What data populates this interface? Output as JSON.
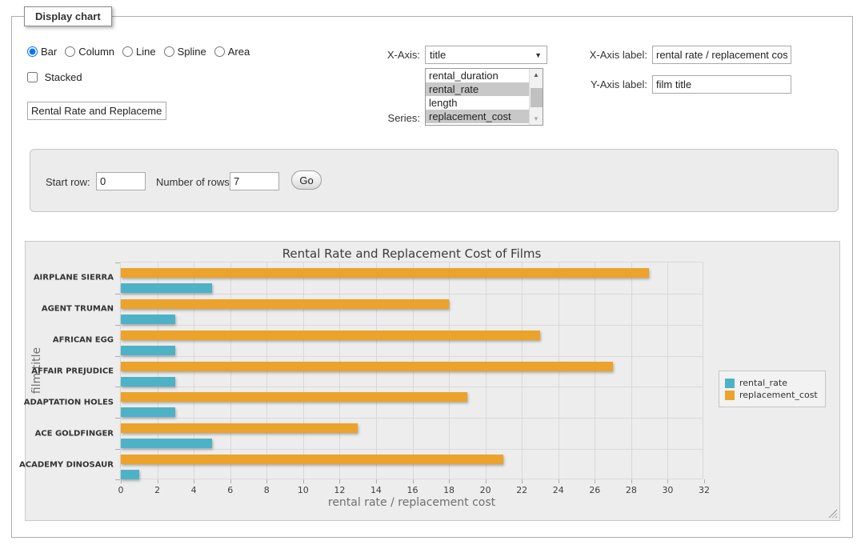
{
  "panel": {
    "title": "Display chart"
  },
  "controls": {
    "chart_types": [
      "Bar",
      "Column",
      "Line",
      "Spline",
      "Area"
    ],
    "selected_chart_type": "Bar",
    "stacked_label": "Stacked",
    "stacked_checked": false,
    "chart_title_value": "Rental Rate and Replacement Cost of Films",
    "xaxis_label": "X-Axis:",
    "xaxis_selected": "title",
    "series_label": "Series:",
    "series_options": [
      {
        "label": "rental_duration",
        "selected": false
      },
      {
        "label": "rental_rate",
        "selected": true
      },
      {
        "label": "length",
        "selected": false
      },
      {
        "label": "replacement_cost",
        "selected": true
      }
    ],
    "xaxis_title_label": "X-Axis label:",
    "xaxis_title_value": "rental rate / replacement cost",
    "yaxis_title_label": "Y-Axis label:",
    "yaxis_title_value": "film title"
  },
  "row_form": {
    "start_row_label": "Start row:",
    "start_row_value": "0",
    "num_rows_label": "Number of rows:",
    "num_rows_value": "7",
    "go_label": "Go"
  },
  "icons": {
    "dropdown_arrow": "▼",
    "scroll_up": "▲",
    "scroll_down": "▼"
  },
  "chart_data": {
    "type": "bar",
    "title": "Rental Rate and Replacement Cost of Films",
    "categories": [
      "AIRPLANE SIERRA",
      "AGENT TRUMAN",
      "AFRICAN EGG",
      "AFFAIR PREJUDICE",
      "ADAPTATION HOLES",
      "ACE GOLDFINGER",
      "ACADEMY DINOSAUR"
    ],
    "series": [
      {
        "name": "rental_rate",
        "color": "#4eb2c7",
        "values": [
          4.99,
          2.99,
          2.99,
          2.99,
          2.99,
          4.99,
          0.99
        ]
      },
      {
        "name": "replacement_cost",
        "color": "#eba32b",
        "values": [
          28.99,
          17.99,
          22.99,
          26.99,
          18.99,
          12.99,
          20.99
        ]
      }
    ],
    "xlabel": "rental rate / replacement cost",
    "ylabel": "film title",
    "xlim": [
      0,
      32
    ],
    "xtick_step": 2,
    "grid": true,
    "legend_position": "right",
    "orientation": "horizontal"
  }
}
